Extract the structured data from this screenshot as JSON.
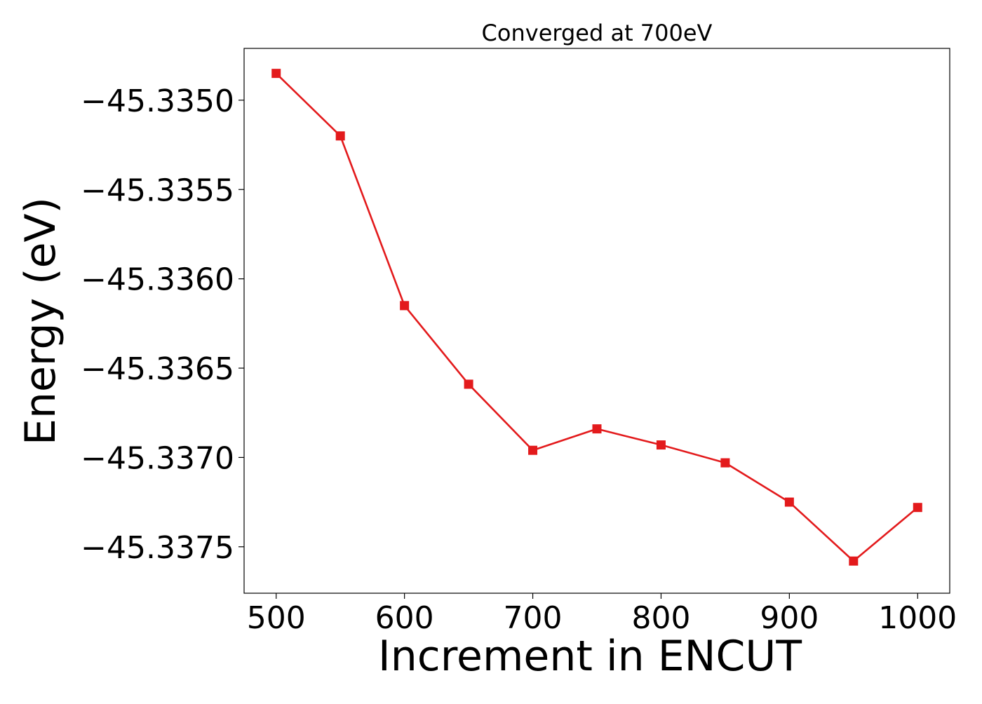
{
  "chart_data": {
    "type": "line",
    "title": "Converged at 700eV",
    "xlabel": "Increment in ENCUT",
    "ylabel": "Energy (eV)",
    "x": [
      500,
      550,
      600,
      650,
      700,
      750,
      800,
      850,
      900,
      950,
      1000
    ],
    "series": [
      {
        "name": "",
        "values": [
          -45.33485,
          -45.3352,
          -45.33615,
          -45.33659,
          -45.33696,
          -45.33684,
          -45.33693,
          -45.33703,
          -45.33725,
          -45.33758,
          -45.33728
        ],
        "color": "#e31a1c",
        "marker": "square"
      }
    ],
    "xlim": [
      475,
      1025
    ],
    "ylim": [
      -45.33776,
      -45.33471
    ],
    "xticks": [
      500,
      600,
      700,
      800,
      900,
      1000
    ],
    "xtick_labels": [
      "500",
      "600",
      "700",
      "800",
      "900",
      "1000"
    ],
    "yticks": [
      -45.335,
      -45.3355,
      -45.336,
      -45.3365,
      -45.337,
      -45.3375
    ],
    "ytick_labels": [
      "−45.3350",
      "−45.3355",
      "−45.3360",
      "−45.3365",
      "−45.3370",
      "−45.3375"
    ],
    "grid": false,
    "legend": "none"
  }
}
